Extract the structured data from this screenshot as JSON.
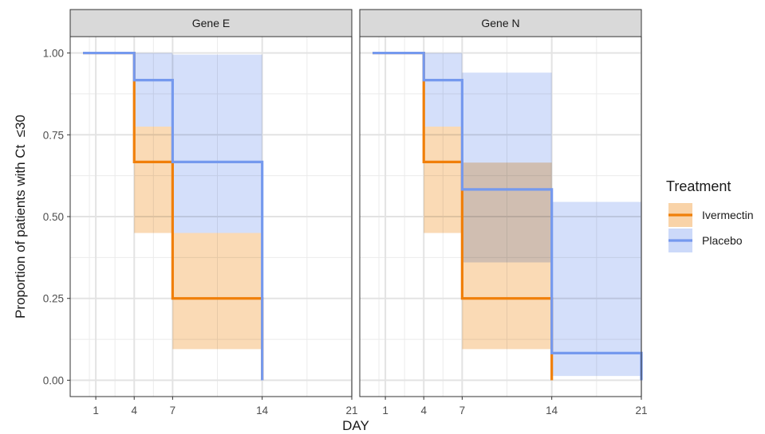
{
  "chart_data": {
    "type": "line",
    "subtype": "step-survival-with-confidence-bands",
    "xlabel": "DAY",
    "ylabel": "Proportion of patients with Ct  ≤30",
    "x_ticks": [
      1,
      4,
      7,
      14,
      21
    ],
    "y_ticks": [
      0.0,
      0.25,
      0.5,
      0.75,
      1.0
    ],
    "y_tick_labels": [
      "0.00",
      "0.25",
      "0.50",
      "0.75",
      "1.00"
    ],
    "xlim": [
      -1,
      21
    ],
    "ylim": [
      -0.05,
      1.05
    ],
    "grid": true,
    "legend": {
      "title": "Treatment",
      "position": "right",
      "entries": [
        {
          "name": "Ivermectin",
          "line_color": "#F07F09",
          "fill_color": "#F9D3A8"
        },
        {
          "name": "Placebo",
          "line_color": "#7599EE",
          "fill_color": "#CCD9F9"
        }
      ]
    },
    "panels": [
      {
        "title": "Gene E",
        "series": [
          {
            "name": "Ivermectin",
            "x": [
              0,
              4,
              7,
              14
            ],
            "y": [
              1.0,
              0.667,
              0.25,
              0.0
            ],
            "lower": [
              1.0,
              0.45,
              0.095,
              0.0
            ],
            "upper": [
              1.0,
              0.775,
              0.45,
              0.0
            ]
          },
          {
            "name": "Placebo",
            "x": [
              0,
              4,
              7,
              14
            ],
            "y": [
              1.0,
              0.917,
              0.667,
              0.0
            ],
            "lower": [
              1.0,
              0.775,
              0.45,
              0.0
            ],
            "upper": [
              1.0,
              1.0,
              0.995,
              0.0
            ]
          }
        ],
        "end_x": 14
      },
      {
        "title": "Gene N",
        "series": [
          {
            "name": "Ivermectin",
            "x": [
              0,
              4,
              7,
              14
            ],
            "y": [
              1.0,
              0.667,
              0.25,
              0.0
            ],
            "lower": [
              1.0,
              0.45,
              0.095,
              0.0
            ],
            "upper": [
              1.0,
              0.775,
              0.665,
              0.0
            ]
          },
          {
            "name": "Placebo",
            "x": [
              0,
              4,
              7,
              14
            ],
            "y": [
              1.0,
              0.917,
              0.583,
              0.083
            ],
            "lower": [
              1.0,
              0.775,
              0.36,
              0.013
            ],
            "upper": [
              1.0,
              1.0,
              0.94,
              0.545
            ]
          }
        ],
        "end_x": 21
      }
    ]
  }
}
